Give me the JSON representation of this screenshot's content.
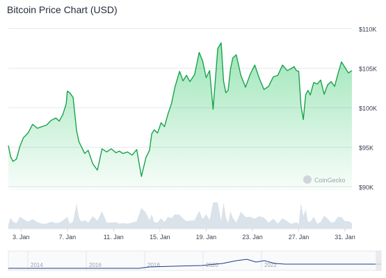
{
  "chart_data": {
    "type": "area",
    "title": "Bitcoin Price Chart (USD)",
    "xlabel": "",
    "ylabel": "",
    "y_axis_position": "right",
    "ylim": [
      89500,
      111000
    ],
    "y_ticks": [
      {
        "value": 90000,
        "label": "$90K"
      },
      {
        "value": 95000,
        "label": "$95K"
      },
      {
        "value": 100000,
        "label": "$100K"
      },
      {
        "value": 105000,
        "label": "$105K"
      },
      {
        "value": 110000,
        "label": "$110K"
      }
    ],
    "x_ticks": [
      {
        "day": 3,
        "label": "3. Jan"
      },
      {
        "day": 7,
        "label": "7. Jan"
      },
      {
        "day": 11,
        "label": "11. Jan"
      },
      {
        "day": 15,
        "label": "15. Jan"
      },
      {
        "day": 19,
        "label": "19. Jan"
      },
      {
        "day": 23,
        "label": "23. Jan"
      },
      {
        "day": 27,
        "label": "27. Jan"
      },
      {
        "day": 31,
        "label": "31. Jan"
      }
    ],
    "xlim": [
      1.9,
      31.6
    ],
    "grid": true,
    "line_color": "#16a34a",
    "fill_color": "#22c55e",
    "watermark": "CoinGecko",
    "series": [
      {
        "x": [
          1.9,
          2.1,
          2.3,
          2.6,
          2.9,
          3.2,
          3.6,
          4.0,
          4.4,
          4.8,
          5.2,
          5.6,
          6.0,
          6.3,
          6.6,
          6.9,
          7.0,
          7.2,
          7.5,
          7.8,
          8.0,
          8.2,
          8.5,
          8.8,
          9.2,
          9.6,
          10.0,
          10.4,
          10.8,
          11.2,
          11.5,
          11.8,
          12.2,
          12.6,
          13.0,
          13.4,
          13.8,
          14.1,
          14.3,
          14.5,
          14.8,
          15.1,
          15.4,
          15.7,
          16.0,
          16.3,
          16.7,
          17.0,
          17.3,
          17.6,
          18.0,
          18.4,
          18.7,
          19.0,
          19.3,
          19.6,
          20.0,
          20.3,
          20.5,
          20.7,
          20.9,
          21.1,
          21.3,
          21.6,
          22.0,
          22.4,
          22.8,
          23.2,
          23.6,
          24.0,
          24.4,
          24.8,
          25.2,
          25.6,
          26.0,
          26.3,
          26.6,
          26.8,
          27.0,
          27.2,
          27.4,
          27.6,
          27.8,
          28.0,
          28.3,
          28.6,
          28.9,
          29.2,
          29.5,
          29.8,
          30.1,
          30.4,
          30.7,
          31.0,
          31.3,
          31.6
        ],
        "values": [
          95200,
          93800,
          93200,
          93500,
          95100,
          96200,
          96800,
          97900,
          97400,
          97600,
          97800,
          98400,
          98700,
          98300,
          99100,
          100500,
          102100,
          101900,
          101300,
          97100,
          95700,
          95100,
          94200,
          94600,
          92900,
          92100,
          94800,
          94400,
          94800,
          94300,
          94500,
          94200,
          94400,
          94000,
          94700,
          91300,
          93700,
          94600,
          96700,
          97200,
          96800,
          98100,
          97600,
          99200,
          100500,
          102600,
          104600,
          103400,
          104100,
          103300,
          104200,
          107000,
          105900,
          103800,
          104700,
          99800,
          107500,
          108200,
          103400,
          101900,
          102200,
          104900,
          106300,
          106700,
          104100,
          102600,
          104200,
          105400,
          103700,
          102300,
          102700,
          103900,
          104100,
          105400,
          104700,
          104900,
          105200,
          104700,
          104600,
          100200,
          98500,
          101600,
          102200,
          101600,
          103200,
          103000,
          103500,
          101700,
          102900,
          103300,
          102700,
          104300,
          105800,
          105100,
          104400,
          104700
        ]
      }
    ],
    "navigator_labels": [
      "2014",
      "2016",
      "2018",
      "2020",
      "2022"
    ]
  }
}
